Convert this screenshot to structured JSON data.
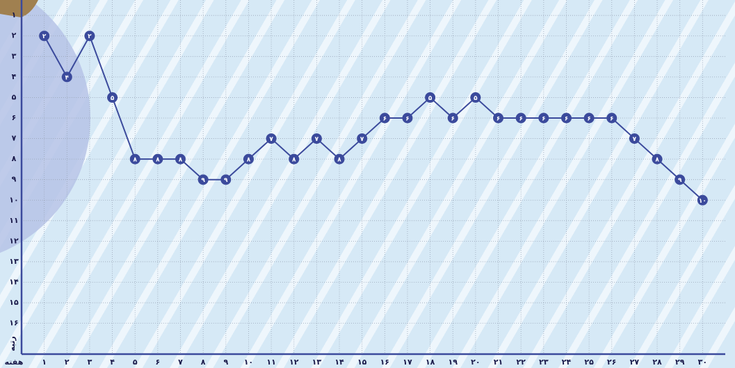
{
  "chart_data": {
    "type": "line",
    "x_label": "هفته",
    "y_label": "رتبه",
    "y_inverted": true,
    "grid": true,
    "color": "#3b4a9c",
    "x": [
      1,
      2,
      3,
      4,
      5,
      6,
      7,
      8,
      9,
      10,
      11,
      12,
      13,
      14,
      15,
      16,
      17,
      18,
      19,
      20,
      21,
      22,
      23,
      24,
      25,
      26,
      27,
      28,
      29,
      30
    ],
    "values": [
      2,
      4,
      2,
      5,
      8,
      8,
      8,
      9,
      9,
      8,
      7,
      8,
      7,
      8,
      7,
      6,
      6,
      5,
      6,
      5,
      6,
      6,
      6,
      6,
      6,
      6,
      7,
      8,
      9,
      10
    ],
    "value_labels": [
      "۲",
      "۴",
      "۲",
      "۵",
      "۸",
      "۸",
      "۸",
      "۹",
      "۹",
      "۸",
      "۷",
      "۸",
      "۷",
      "۸",
      "۷",
      "۶",
      "۶",
      "۵",
      "۶",
      "۵",
      "۶",
      "۶",
      "۶",
      "۶",
      "۶",
      "۶",
      "۷",
      "۸",
      "۹",
      "۱۰"
    ],
    "xlim": [
      0,
      31
    ],
    "ylim": [
      0.25,
      17.5
    ],
    "xticks": [
      {
        "value": 1,
        "label": "۱"
      },
      {
        "value": 2,
        "label": "۲"
      },
      {
        "value": 3,
        "label": "۳"
      },
      {
        "value": 4,
        "label": "۴"
      },
      {
        "value": 5,
        "label": "۵"
      },
      {
        "value": 6,
        "label": "۶"
      },
      {
        "value": 7,
        "label": "۷"
      },
      {
        "value": 8,
        "label": "۸"
      },
      {
        "value": 9,
        "label": "۹"
      },
      {
        "value": 10,
        "label": "۱۰"
      },
      {
        "value": 11,
        "label": "۱۱"
      },
      {
        "value": 12,
        "label": "۱۲"
      },
      {
        "value": 13,
        "label": "۱۳"
      },
      {
        "value": 14,
        "label": "۱۴"
      },
      {
        "value": 15,
        "label": "۱۵"
      },
      {
        "value": 16,
        "label": "۱۶"
      },
      {
        "value": 17,
        "label": "۱۷"
      },
      {
        "value": 18,
        "label": "۱۸"
      },
      {
        "value": 19,
        "label": "۱۹"
      },
      {
        "value": 20,
        "label": "۲۰"
      },
      {
        "value": 21,
        "label": "۲۱"
      },
      {
        "value": 22,
        "label": "۲۲"
      },
      {
        "value": 23,
        "label": "۲۳"
      },
      {
        "value": 24,
        "label": "۲۴"
      },
      {
        "value": 25,
        "label": "۲۵"
      },
      {
        "value": 26,
        "label": "۲۶"
      },
      {
        "value": 27,
        "label": "۲۷"
      },
      {
        "value": 28,
        "label": "۲۸"
      },
      {
        "value": 29,
        "label": "۲۹"
      },
      {
        "value": 30,
        "label": "۳۰"
      }
    ],
    "yticks": [
      {
        "value": 1,
        "label": "۱"
      },
      {
        "value": 2,
        "label": "۲"
      },
      {
        "value": 3,
        "label": "۳"
      },
      {
        "value": 4,
        "label": "۴"
      },
      {
        "value": 5,
        "label": "۵"
      },
      {
        "value": 6,
        "label": "۶"
      },
      {
        "value": 7,
        "label": "۷"
      },
      {
        "value": 8,
        "label": "۸"
      },
      {
        "value": 9,
        "label": "۹"
      },
      {
        "value": 10,
        "label": "۱۰"
      },
      {
        "value": 11,
        "label": "۱۱"
      },
      {
        "value": 12,
        "label": "۱۲"
      },
      {
        "value": 13,
        "label": "۱۳"
      },
      {
        "value": 14,
        "label": "۱۴"
      },
      {
        "value": 15,
        "label": "۱۵"
      },
      {
        "value": 16,
        "label": "۱۶"
      }
    ]
  }
}
